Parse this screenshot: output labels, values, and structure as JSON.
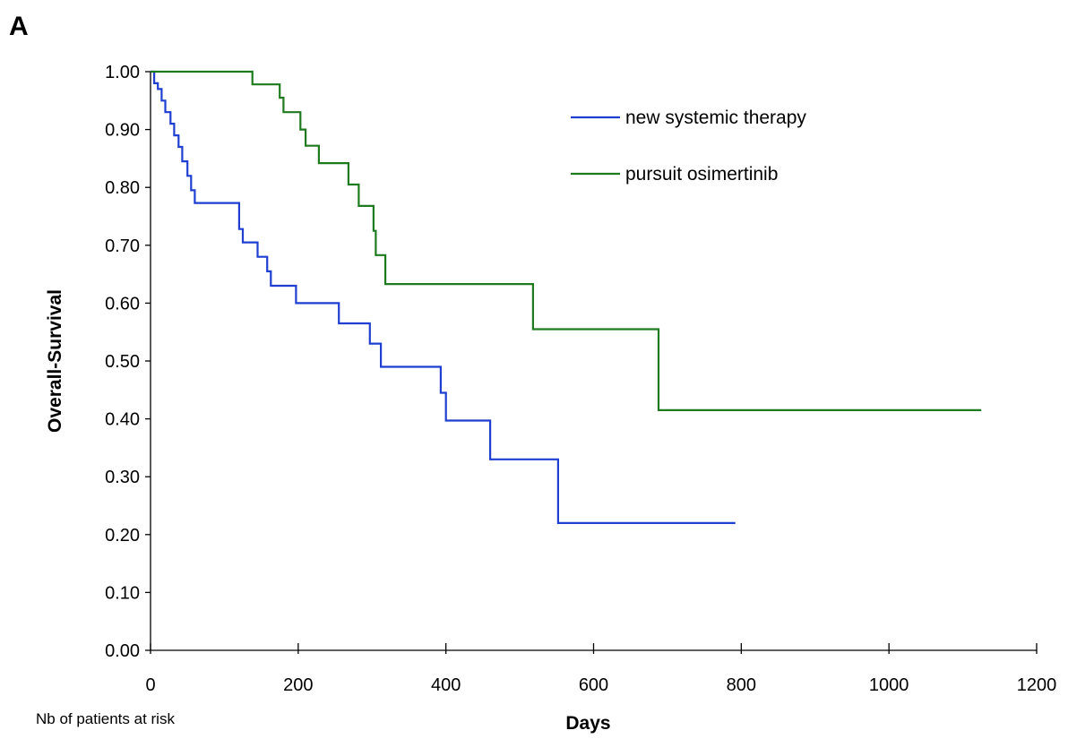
{
  "panel_label": "A",
  "note": "Nb of patients at risk",
  "colors": {
    "axis": "#000000",
    "new_systemic_therapy": "#1f3fd0",
    "pursuit_osimertinib": "#1e7a1e"
  },
  "chart_data": {
    "type": "line",
    "step": true,
    "title": "",
    "xlabel": "Days",
    "ylabel": "Overall-Survival",
    "xlim": [
      0,
      1200
    ],
    "ylim": [
      0,
      1
    ],
    "x_ticks": [
      "0",
      "200",
      "400",
      "600",
      "800",
      "1000",
      "1200"
    ],
    "y_ticks": [
      "0.00",
      "0.10",
      "0.20",
      "0.30",
      "0.40",
      "0.50",
      "0.60",
      "0.70",
      "0.80",
      "0.90",
      "1.00"
    ],
    "grid": false,
    "legend": "top-right",
    "series": [
      {
        "name": "new systemic therapy",
        "color": "#1f3fd0",
        "points": [
          [
            0,
            1.0
          ],
          [
            5,
            0.98
          ],
          [
            10,
            0.97
          ],
          [
            15,
            0.95
          ],
          [
            20,
            0.93
          ],
          [
            27,
            0.91
          ],
          [
            32,
            0.89
          ],
          [
            38,
            0.87
          ],
          [
            43,
            0.845
          ],
          [
            50,
            0.82
          ],
          [
            55,
            0.795
          ],
          [
            60,
            0.773
          ],
          [
            120,
            0.728
          ],
          [
            125,
            0.705
          ],
          [
            145,
            0.68
          ],
          [
            158,
            0.655
          ],
          [
            163,
            0.63
          ],
          [
            197,
            0.6
          ],
          [
            255,
            0.565
          ],
          [
            297,
            0.53
          ],
          [
            312,
            0.49
          ],
          [
            393,
            0.445
          ],
          [
            400,
            0.397
          ],
          [
            460,
            0.33
          ],
          [
            552,
            0.22
          ],
          [
            792,
            0.22
          ]
        ]
      },
      {
        "name": "pursuit osimertinib",
        "color": "#1e7a1e",
        "points": [
          [
            0,
            1.0
          ],
          [
            138,
            0.978
          ],
          [
            175,
            0.955
          ],
          [
            180,
            0.93
          ],
          [
            203,
            0.9
          ],
          [
            210,
            0.872
          ],
          [
            228,
            0.842
          ],
          [
            268,
            0.805
          ],
          [
            282,
            0.768
          ],
          [
            302,
            0.725
          ],
          [
            305,
            0.683
          ],
          [
            318,
            0.633
          ],
          [
            518,
            0.555
          ],
          [
            688,
            0.415
          ],
          [
            1125,
            0.415
          ]
        ]
      }
    ]
  }
}
